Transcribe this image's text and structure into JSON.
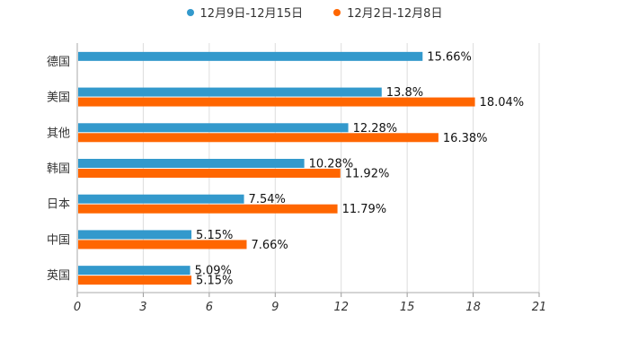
{
  "chart_data": {
    "type": "bar",
    "orientation": "horizontal",
    "categories": [
      "德国",
      "美国",
      "其他",
      "韩国",
      "日本",
      "中国",
      "英国"
    ],
    "series": [
      {
        "name": "12月9日-12月15日",
        "color": "#3399cc",
        "values": [
          15.66,
          13.8,
          12.28,
          10.28,
          7.54,
          5.15,
          5.09
        ],
        "labels": [
          "15.66%",
          "13.8%",
          "12.28%",
          "10.28%",
          "7.54%",
          "5.15%",
          "5.09%"
        ]
      },
      {
        "name": "12月2日-12月8日",
        "color": "#ff6600",
        "values": [
          null,
          18.04,
          16.38,
          11.92,
          11.79,
          7.66,
          5.15
        ],
        "labels": [
          "",
          "18.04%",
          "16.38%",
          "11.92%",
          "11.79%",
          "7.66%",
          "5.15%"
        ]
      }
    ],
    "xlim": [
      0,
      21
    ],
    "xticks": [
      "0",
      "3",
      "6",
      "9",
      "12",
      "15",
      "18",
      "21"
    ],
    "grid": true,
    "legend_position": "top-center"
  }
}
